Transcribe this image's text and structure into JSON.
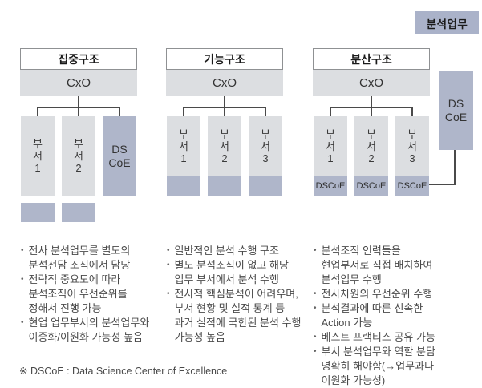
{
  "ui": {
    "bullet_char": "•"
  },
  "badge": {
    "label": "분석업무"
  },
  "side_box": {
    "label": "DS\nCoE"
  },
  "footnote": "※ DSCoE : Data Science Center of Excellence",
  "colors": {
    "accent_blue": "#afb6ca",
    "box_gray": "#dcdee1",
    "line": "#4a4a4a"
  },
  "columns": [
    {
      "title": "집중구조",
      "root": "CxO",
      "children": [
        {
          "label": "부\n서\n1"
        },
        {
          "label": "부\n서\n2"
        },
        {
          "label": "DS\nCoE"
        }
      ],
      "bullets": [
        "전사 분석업무를 별도의\n분석전담 조직에서 담당",
        "전략적 중요도에 따라\n분석조직이 우선순위를\n정해서 진행 가능",
        "현업 업무부서의 분석업무와\n이중화/이원화 가능성 높음"
      ]
    },
    {
      "title": "기능구조",
      "root": "CxO",
      "children": [
        {
          "label": "부\n서\n1"
        },
        {
          "label": "부\n서\n2"
        },
        {
          "label": "부\n서\n3"
        }
      ],
      "bullets": [
        "일반적인 분석 수행 구조",
        "별도 분석조직이 없고 해당\n업무 부서에서 분석 수행",
        "전사적 핵심분석이 어려우며,\n부서 현황 및 실적 통계 등\n과거 실적에 국한된 분석 수행\n가능성 높음"
      ]
    },
    {
      "title": "분산구조",
      "root": "CxO",
      "children": [
        {
          "label": "부\n서\n1",
          "tag": "DSCoE"
        },
        {
          "label": "부\n서\n2",
          "tag": "DSCoE"
        },
        {
          "label": "부\n서\n3",
          "tag": "DSCoE"
        }
      ],
      "bullets": [
        "분석조직 인력들을\n현업부서로 직접 배치하여\n분석업무 수행",
        "전사차원의 우선순위 수행",
        "분석결과에 따른 신속한\nAction 가능",
        "베스트 프랙티스 공유 가능",
        "부서 분석업무와 역할 분담\n명확히 해야함(→업무과다\n이원화 가능성)"
      ]
    }
  ]
}
